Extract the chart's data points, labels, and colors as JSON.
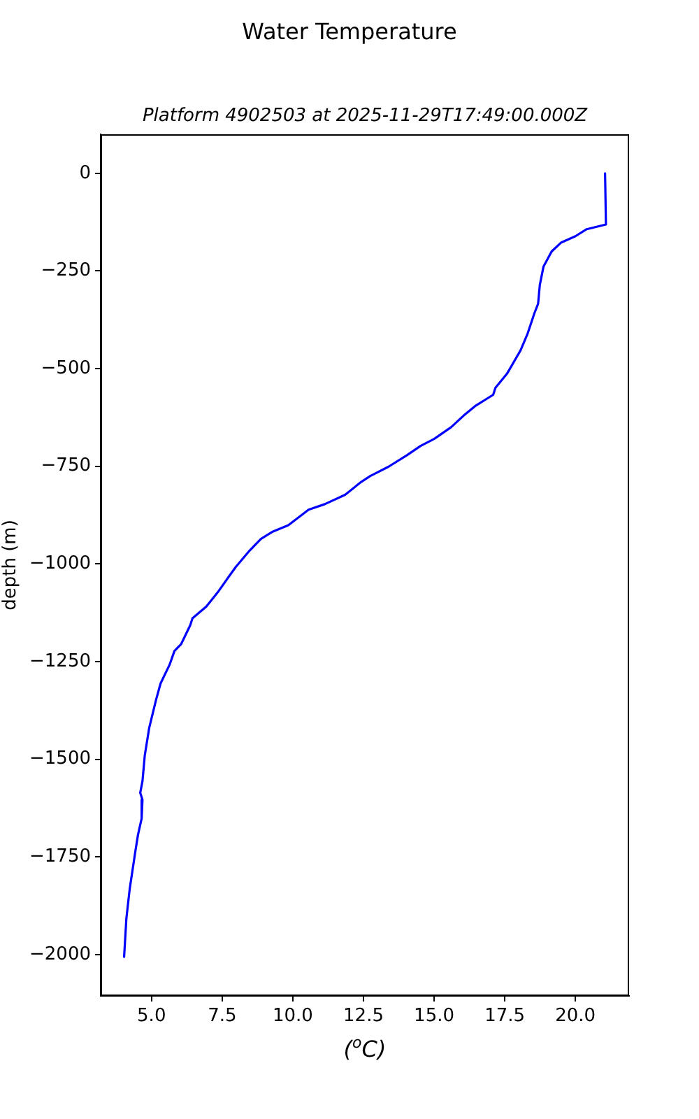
{
  "chart_data": {
    "type": "line",
    "title": "Water Temperature",
    "subtitle": "Platform 4902503 at 2025-11-29T17:49:00.000Z",
    "xlabel": "($^{o}$C)",
    "ylabel": "depth (m)",
    "color": "#0000ff",
    "x": [
      21.05,
      21.08,
      20.4,
      20.0,
      19.5,
      19.16,
      18.87,
      18.74,
      18.68,
      18.55,
      18.3,
      18.06,
      17.58,
      17.17,
      17.09,
      16.45,
      16.05,
      15.6,
      15.0,
      14.52,
      14.03,
      13.39,
      12.74,
      12.42,
      11.85,
      11.13,
      10.56,
      9.84,
      9.27,
      8.87,
      8.47,
      7.98,
      7.74,
      7.34,
      6.94,
      6.45,
      6.37,
      6.05,
      5.81,
      5.64,
      5.32,
      5.16,
      4.92,
      4.76,
      4.68,
      4.6,
      4.68,
      4.65,
      4.52,
      4.43,
      4.23,
      4.11,
      4.03
    ],
    "values": [
      0,
      -131,
      -143,
      -161,
      -177,
      -200,
      -239,
      -286,
      -334,
      -358,
      -412,
      -453,
      -513,
      -549,
      -567,
      -596,
      -620,
      -650,
      -680,
      -698,
      -722,
      -751,
      -775,
      -790,
      -823,
      -847,
      -861,
      -901,
      -918,
      -936,
      -966,
      -1008,
      -1032,
      -1073,
      -1109,
      -1139,
      -1157,
      -1205,
      -1223,
      -1258,
      -1306,
      -1348,
      -1419,
      -1491,
      -1556,
      -1586,
      -1604,
      -1652,
      -1694,
      -1735,
      -1831,
      -1908,
      -2006
    ],
    "xlim": [
      3.2,
      21.9
    ],
    "ylim": [
      -2106,
      100
    ],
    "xticks": [
      {
        "value": 5,
        "label": "5.0"
      },
      7.5,
      {
        "value": 10,
        "label": "10.0"
      },
      12.5,
      {
        "value": 15,
        "label": "15.0"
      },
      17.5,
      {
        "value": 20,
        "label": "20.0"
      }
    ],
    "yticks": [
      0,
      {
        "value": -250,
        "label": "−250"
      },
      {
        "value": -500,
        "label": "−500"
      },
      {
        "value": -750,
        "label": "−750"
      },
      {
        "value": -1000,
        "label": "−1000"
      },
      {
        "value": -1250,
        "label": "−1250"
      },
      {
        "value": -1500,
        "label": "−1500"
      },
      {
        "value": -1750,
        "label": "−1750"
      },
      {
        "value": -2000,
        "label": "−2000"
      }
    ]
  }
}
